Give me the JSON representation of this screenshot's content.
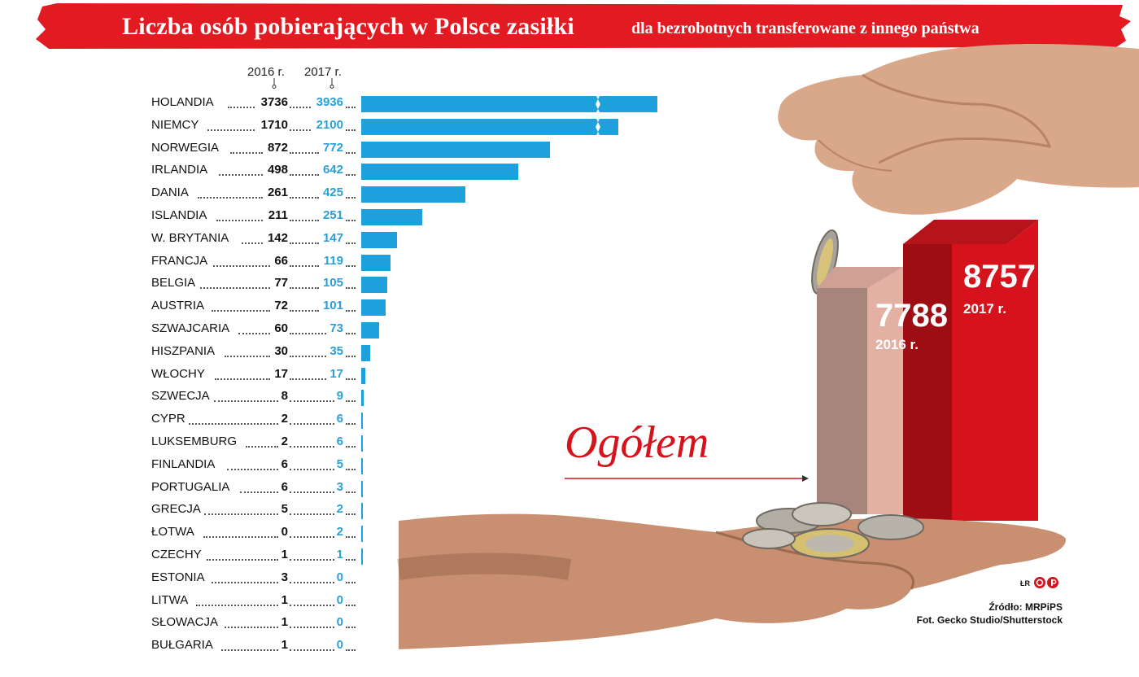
{
  "header": {
    "title": "Liczba osób pobierających w Polsce zasiłki",
    "subtitle": "dla bezrobotnych transferowane z innego państwa"
  },
  "colors": {
    "banner": "#e21b23",
    "bar": "#1ea0dc",
    "value_2017": "#2a9fd8",
    "value_2016": "#111111",
    "total_2016_front": "#e3b0a4",
    "total_2016_side": "#a6857c",
    "total_2017_front": "#d6121c",
    "total_2017_side": "#9e0d13",
    "ogolem": "#d6121c"
  },
  "chart_data": [
    {
      "type": "bar",
      "orientation": "horizontal",
      "title": "Liczba osób pobierających w Polsce zasiłki dla bezrobotnych transferowane z innego państwa",
      "column_headers": [
        "2016 r.",
        "2017 r."
      ],
      "bars_show": "2017 r.",
      "broken_bars": [
        "HOLANDIA",
        "NIEMCY"
      ],
      "categories": [
        "HOLANDIA",
        "NIEMCY",
        "NORWEGIA",
        "IRLANDIA",
        "DANIA",
        "ISLANDIA",
        "W. BRYTANIA",
        "FRANCJA",
        "BELGIA",
        "AUSTRIA",
        "SZWAJCARIA",
        "HISZPANIA",
        "WŁOCHY",
        "SZWECJA",
        "CYPR",
        "LUKSEMBURG",
        "FINLANDIA",
        "PORTUGALIA",
        "GRECJA",
        "ŁOTWA",
        "CZECHY",
        "ESTONIA",
        "LITWA",
        "SŁOWACJA",
        "BUŁGARIA"
      ],
      "series": [
        {
          "name": "2016 r.",
          "values": [
            3736,
            1710,
            872,
            498,
            261,
            211,
            142,
            66,
            77,
            72,
            60,
            30,
            17,
            8,
            2,
            2,
            6,
            6,
            5,
            0,
            1,
            3,
            1,
            1,
            1
          ]
        },
        {
          "name": "2017 r.",
          "values": [
            3936,
            2100,
            772,
            642,
            425,
            251,
            147,
            119,
            105,
            101,
            73,
            35,
            17,
            9,
            6,
            6,
            5,
            3,
            2,
            2,
            1,
            0,
            0,
            0,
            0
          ]
        }
      ]
    },
    {
      "type": "bar",
      "orientation": "vertical",
      "style": "3d",
      "label": "Ogółem",
      "categories": [
        "2016 r.",
        "2017 r."
      ],
      "values": [
        7788,
        8757
      ]
    }
  ],
  "annotations": {
    "ogolem": "Ogółem",
    "initials": "ŁR",
    "source": "Źródło: MRPiPS",
    "photo_credit": "Fot. Gecko Studio/Shutterstock"
  }
}
